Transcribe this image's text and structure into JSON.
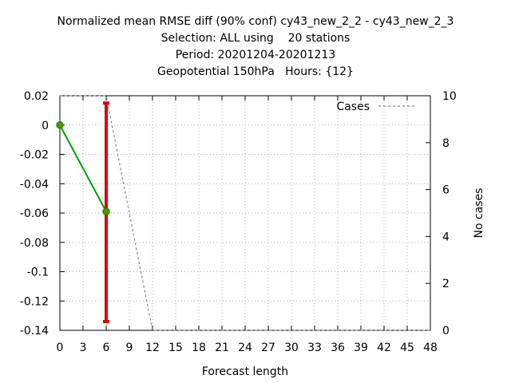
{
  "chart_data": {
    "type": "line",
    "title_lines": [
      "Normalized mean RMSE diff (90% conf) cy43_new_2_2 - cy43_new_2_3",
      "Selection: ALL using    20 stations",
      "Period: 20201204-20201213",
      "Geopotential 150hPa   Hours: {12}"
    ],
    "xlabel": "Forecast length",
    "ylabel_left": "",
    "ylabel_right": "No cases",
    "xlim": [
      0,
      48
    ],
    "ylim": [
      -0.14,
      0.02
    ],
    "y2lim": [
      0,
      10
    ],
    "x_ticks": [
      0,
      3,
      6,
      9,
      12,
      15,
      18,
      21,
      24,
      27,
      30,
      33,
      36,
      39,
      42,
      45,
      48
    ],
    "y_ticks": [
      0.02,
      0,
      -0.02,
      -0.04,
      -0.06,
      -0.08,
      -0.1,
      -0.12,
      -0.14
    ],
    "y_tick_labels": [
      "0.02",
      "0",
      "-0.02",
      "-0.04",
      "-0.06",
      "-0.08",
      "-0.1",
      "-0.12",
      "-0.14"
    ],
    "y2_ticks": [
      0,
      2,
      4,
      6,
      8,
      10
    ],
    "grid": true,
    "legend_position": "top-right",
    "series": [
      {
        "name": "",
        "axis": "left",
        "color": "#00a000",
        "x": [
          0,
          6
        ],
        "y": [
          0,
          -0.059
        ]
      },
      {
        "name": "Cases",
        "axis": "right",
        "color": "#888888",
        "dashed": true,
        "x": [
          0,
          3,
          6,
          12,
          48
        ],
        "y": [
          10,
          10,
          10,
          0,
          0
        ]
      }
    ],
    "error_bars": [
      {
        "color": "#e00000",
        "x": 6,
        "low": -0.134,
        "high": 0.015
      }
    ]
  }
}
